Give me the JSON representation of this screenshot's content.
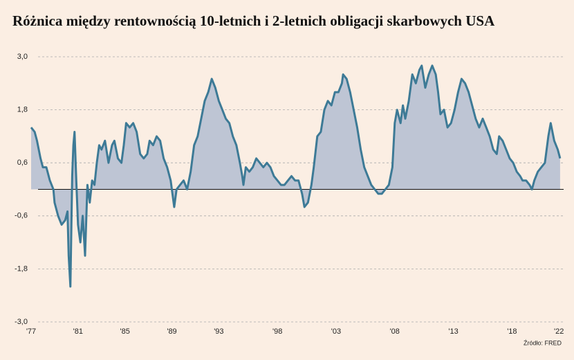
{
  "chart_data": {
    "type": "area",
    "title": "Różnica między rentownością 10-letnich i 2-letnich obligacji skarbowych USA",
    "source": "Źródło: FRED",
    "color": "#3d7a96",
    "area_color": "#bec5d4",
    "grid": true,
    "xlim": [
      1977,
      2022.2
    ],
    "xticks": [
      {
        "value": 1977,
        "label": "'77"
      },
      {
        "value": 1981,
        "label": "'81"
      },
      {
        "value": 1985,
        "label": "'85"
      },
      {
        "value": 1989,
        "label": "'89"
      },
      {
        "value": 1993,
        "label": "'93"
      },
      {
        "value": 1998,
        "label": "'98"
      },
      {
        "value": 2003,
        "label": "'03"
      },
      {
        "value": 2008,
        "label": "'08"
      },
      {
        "value": 2013,
        "label": "'13"
      },
      {
        "value": 2018,
        "label": "'18"
      },
      {
        "value": 2022,
        "label": "'22"
      }
    ],
    "ylim": [
      -3,
      3
    ],
    "yticks": [
      {
        "value": 3,
        "label": "3,0"
      },
      {
        "value": 1.8,
        "label": "1,8"
      },
      {
        "value": 0.6,
        "label": "0,6"
      },
      {
        "value": -0.6,
        "label": "-0,6"
      },
      {
        "value": -1.8,
        "label": "-1,8"
      },
      {
        "value": -3,
        "label": "-3,0"
      }
    ],
    "x": [
      1977.0,
      1977.3,
      1977.5,
      1977.8,
      1978.0,
      1978.3,
      1978.6,
      1978.9,
      1979.0,
      1979.3,
      1979.6,
      1979.9,
      1980.1,
      1980.2,
      1980.35,
      1980.5,
      1980.6,
      1980.7,
      1980.85,
      1981.0,
      1981.2,
      1981.4,
      1981.6,
      1981.8,
      1982.0,
      1982.2,
      1982.4,
      1982.6,
      1982.8,
      1983.0,
      1983.3,
      1983.6,
      1983.9,
      1984.1,
      1984.4,
      1984.7,
      1984.9,
      1985.1,
      1985.4,
      1985.7,
      1986.0,
      1986.3,
      1986.6,
      1986.9,
      1987.1,
      1987.4,
      1987.7,
      1988.0,
      1988.3,
      1988.6,
      1988.9,
      1989.2,
      1989.4,
      1989.7,
      1990.0,
      1990.3,
      1990.6,
      1990.9,
      1991.2,
      1991.5,
      1991.8,
      1992.1,
      1992.4,
      1992.7,
      1993.0,
      1993.3,
      1993.6,
      1993.9,
      1994.2,
      1994.5,
      1994.8,
      1995.0,
      1995.1,
      1995.3,
      1995.6,
      1995.9,
      1996.2,
      1996.5,
      1996.8,
      1997.1,
      1997.4,
      1997.7,
      1998.0,
      1998.3,
      1998.6,
      1998.9,
      1999.2,
      1999.5,
      1999.8,
      2000.1,
      2000.3,
      2000.6,
      2000.9,
      2001.1,
      2001.4,
      2001.7,
      2002.0,
      2002.3,
      2002.6,
      2002.9,
      2003.2,
      2003.5,
      2003.6,
      2003.9,
      2004.2,
      2004.5,
      2004.8,
      2005.1,
      2005.4,
      2005.7,
      2006.0,
      2006.3,
      2006.6,
      2006.9,
      2007.2,
      2007.5,
      2007.8,
      2008.0,
      2008.2,
      2008.5,
      2008.7,
      2008.9,
      2009.2,
      2009.5,
      2009.8,
      2010.1,
      2010.3,
      2010.6,
      2010.9,
      2011.2,
      2011.5,
      2011.7,
      2011.9,
      2012.2,
      2012.5,
      2012.8,
      2013.1,
      2013.4,
      2013.7,
      2014.0,
      2014.3,
      2014.6,
      2014.9,
      2015.2,
      2015.5,
      2015.8,
      2016.1,
      2016.4,
      2016.7,
      2016.9,
      2017.2,
      2017.5,
      2017.8,
      2018.1,
      2018.4,
      2018.7,
      2018.9,
      2019.2,
      2019.5,
      2019.7,
      2019.9,
      2020.2,
      2020.5,
      2020.8,
      2021.1,
      2021.3,
      2021.6,
      2021.9,
      2022.1
    ],
    "values": [
      1.4,
      1.3,
      1.1,
      0.7,
      0.5,
      0.5,
      0.2,
      0.0,
      -0.3,
      -0.6,
      -0.8,
      -0.7,
      -0.5,
      -1.5,
      -2.2,
      0.3,
      1.0,
      1.3,
      0.2,
      -0.8,
      -1.2,
      -0.6,
      -1.5,
      0.1,
      -0.3,
      0.2,
      0.1,
      0.6,
      1.0,
      0.9,
      1.1,
      0.6,
      1.0,
      1.1,
      0.7,
      0.6,
      1.0,
      1.5,
      1.4,
      1.5,
      1.3,
      0.8,
      0.7,
      0.8,
      1.1,
      1.0,
      1.2,
      1.1,
      0.7,
      0.5,
      0.2,
      -0.4,
      0.0,
      0.1,
      0.2,
      0.0,
      0.4,
      1.0,
      1.2,
      1.6,
      2.0,
      2.2,
      2.5,
      2.3,
      2.0,
      1.8,
      1.6,
      1.5,
      1.2,
      1.0,
      0.6,
      0.3,
      0.1,
      0.5,
      0.4,
      0.5,
      0.7,
      0.6,
      0.5,
      0.6,
      0.5,
      0.3,
      0.2,
      0.1,
      0.1,
      0.2,
      0.3,
      0.2,
      0.2,
      -0.1,
      -0.4,
      -0.3,
      0.1,
      0.5,
      1.2,
      1.3,
      1.8,
      2.0,
      1.9,
      2.2,
      2.2,
      2.4,
      2.6,
      2.5,
      2.2,
      1.8,
      1.4,
      0.9,
      0.5,
      0.3,
      0.1,
      0.0,
      -0.1,
      -0.1,
      0.0,
      0.1,
      0.5,
      1.5,
      1.8,
      1.5,
      1.9,
      1.6,
      2.0,
      2.6,
      2.4,
      2.7,
      2.8,
      2.3,
      2.6,
      2.8,
      2.6,
      2.2,
      1.7,
      1.8,
      1.4,
      1.5,
      1.8,
      2.2,
      2.5,
      2.4,
      2.2,
      1.9,
      1.6,
      1.4,
      1.6,
      1.4,
      1.2,
      0.9,
      0.8,
      1.2,
      1.1,
      0.9,
      0.7,
      0.6,
      0.4,
      0.3,
      0.2,
      0.2,
      0.1,
      0.0,
      0.2,
      0.4,
      0.5,
      0.6,
      1.2,
      1.5,
      1.1,
      0.9,
      0.7
    ]
  }
}
